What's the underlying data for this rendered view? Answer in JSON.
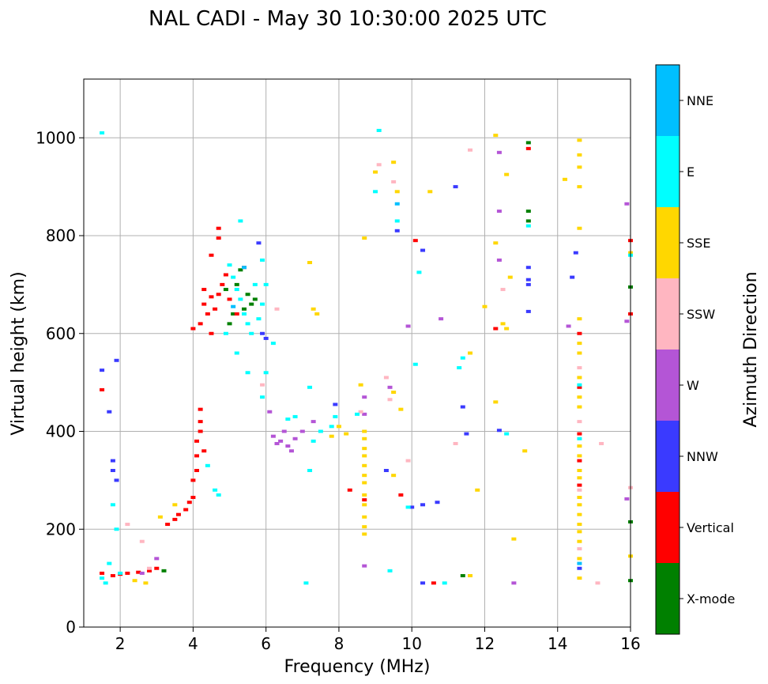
{
  "chart_data": {
    "type": "scatter",
    "title": "NAL CADI - May 30 10:30:00 2025 UTC",
    "xlabel": "Frequency (MHz)",
    "ylabel": "Virtual height (km)",
    "xlim": [
      1,
      16
    ],
    "ylim": [
      0,
      1120
    ],
    "xticks": [
      2,
      4,
      6,
      8,
      10,
      12,
      14,
      16
    ],
    "yticks": [
      0,
      200,
      400,
      600,
      800,
      1000
    ],
    "grid": true,
    "colorbar": {
      "label": "Azimuth Direction",
      "categories": [
        {
          "name": "X-mode",
          "color": "#008000"
        },
        {
          "name": "Vertical",
          "color": "#ff0000"
        },
        {
          "name": "NNW",
          "color": "#3a3aff"
        },
        {
          "name": "W",
          "color": "#b455d6"
        },
        {
          "name": "SSW",
          "color": "#ffb6c1"
        },
        {
          "name": "SSE",
          "color": "#ffd700"
        },
        {
          "name": "E",
          "color": "#00ffff"
        },
        {
          "name": "NNE",
          "color": "#00bfff"
        }
      ]
    },
    "series": [
      {
        "name": "X-mode",
        "points": [
          [
            3.2,
            115
          ],
          [
            5.3,
            730
          ],
          [
            5.5,
            680
          ],
          [
            5.2,
            700
          ],
          [
            5.6,
            660
          ],
          [
            5.4,
            650
          ],
          [
            13.2,
            990
          ],
          [
            13.2,
            830
          ],
          [
            13.2,
            850
          ],
          [
            16.0,
            695
          ],
          [
            16.0,
            215
          ],
          [
            16.0,
            95
          ],
          [
            5.1,
            640
          ],
          [
            4.9,
            690
          ],
          [
            11.4,
            105
          ],
          [
            5.7,
            670
          ],
          [
            5.0,
            620
          ]
        ]
      },
      {
        "name": "Vertical",
        "points": [
          [
            1.5,
            110
          ],
          [
            1.8,
            105
          ],
          [
            2.0,
            108
          ],
          [
            2.2,
            110
          ],
          [
            2.5,
            112
          ],
          [
            2.8,
            115
          ],
          [
            3.0,
            120
          ],
          [
            3.3,
            210
          ],
          [
            3.5,
            220
          ],
          [
            3.6,
            230
          ],
          [
            3.8,
            240
          ],
          [
            3.9,
            255
          ],
          [
            4.0,
            265
          ],
          [
            4.0,
            300
          ],
          [
            4.1,
            320
          ],
          [
            4.1,
            350
          ],
          [
            4.1,
            380
          ],
          [
            4.2,
            400
          ],
          [
            4.2,
            420
          ],
          [
            4.2,
            445
          ],
          [
            4.3,
            360
          ],
          [
            4.0,
            610
          ],
          [
            4.2,
            620
          ],
          [
            4.3,
            660
          ],
          [
            4.4,
            640
          ],
          [
            4.5,
            600
          ],
          [
            4.6,
            650
          ],
          [
            4.7,
            680
          ],
          [
            4.8,
            700
          ],
          [
            4.9,
            720
          ],
          [
            4.5,
            760
          ],
          [
            4.7,
            795
          ],
          [
            4.7,
            815
          ],
          [
            5.0,
            670
          ],
          [
            5.2,
            640
          ],
          [
            4.5,
            675
          ],
          [
            8.3,
            280
          ],
          [
            8.7,
            260
          ],
          [
            9.7,
            270
          ],
          [
            10.1,
            790
          ],
          [
            10.6,
            90
          ],
          [
            12.3,
            610
          ],
          [
            13.2,
            978
          ],
          [
            14.6,
            600
          ],
          [
            14.6,
            490
          ],
          [
            14.6,
            395
          ],
          [
            14.6,
            340
          ],
          [
            14.6,
            290
          ],
          [
            16.0,
            790
          ],
          [
            16.0,
            640
          ],
          [
            4.3,
            690
          ],
          [
            5.4,
            735
          ],
          [
            1.5,
            485
          ]
        ]
      },
      {
        "name": "NNW",
        "points": [
          [
            1.8,
            340
          ],
          [
            1.8,
            320
          ],
          [
            1.9,
            300
          ],
          [
            1.7,
            440
          ],
          [
            9.6,
            810
          ],
          [
            10.3,
            770
          ],
          [
            10.3,
            250
          ],
          [
            10.0,
            245
          ],
          [
            10.7,
            255
          ],
          [
            11.2,
            900
          ],
          [
            11.4,
            450
          ],
          [
            11.5,
            395
          ],
          [
            12.4,
            402
          ],
          [
            13.2,
            735
          ],
          [
            13.2,
            710
          ],
          [
            13.2,
            700
          ],
          [
            13.2,
            645
          ],
          [
            14.4,
            715
          ],
          [
            14.6,
            120
          ],
          [
            5.9,
            600
          ],
          [
            6.0,
            590
          ],
          [
            5.8,
            785
          ],
          [
            7.9,
            455
          ],
          [
            9.3,
            320
          ],
          [
            10.3,
            90
          ],
          [
            14.5,
            765
          ],
          [
            1.5,
            525
          ],
          [
            1.9,
            545
          ]
        ]
      },
      {
        "name": "W",
        "points": [
          [
            6.2,
            390
          ],
          [
            6.4,
            380
          ],
          [
            6.6,
            370
          ],
          [
            6.8,
            385
          ],
          [
            6.5,
            400
          ],
          [
            6.1,
            440
          ],
          [
            6.3,
            375
          ],
          [
            6.7,
            360
          ],
          [
            7.0,
            400
          ],
          [
            7.3,
            420
          ],
          [
            9.4,
            490
          ],
          [
            9.9,
            615
          ],
          [
            10.8,
            630
          ],
          [
            12.4,
            850
          ],
          [
            12.4,
            750
          ],
          [
            12.4,
            970
          ],
          [
            12.8,
            90
          ],
          [
            14.3,
            615
          ],
          [
            15.9,
            865
          ],
          [
            15.9,
            625
          ],
          [
            15.9,
            262
          ],
          [
            8.7,
            125
          ],
          [
            8.7,
            470
          ],
          [
            8.7,
            435
          ],
          [
            3.0,
            140
          ],
          [
            2.6,
            110
          ]
        ]
      },
      {
        "name": "SSW",
        "points": [
          [
            2.2,
            210
          ],
          [
            2.6,
            175
          ],
          [
            2.8,
            120
          ],
          [
            8.6,
            440
          ],
          [
            9.4,
            465
          ],
          [
            9.1,
            945
          ],
          [
            9.5,
            910
          ],
          [
            9.9,
            340
          ],
          [
            11.2,
            375
          ],
          [
            12.5,
            690
          ],
          [
            14.6,
            420
          ],
          [
            14.6,
            530
          ],
          [
            14.6,
            160
          ],
          [
            14.6,
            280
          ],
          [
            15.1,
            90
          ],
          [
            15.2,
            375
          ],
          [
            16.0,
            285
          ],
          [
            6.3,
            650
          ],
          [
            5.9,
            495
          ],
          [
            9.3,
            510
          ],
          [
            11.6,
            975
          ]
        ]
      },
      {
        "name": "SSE",
        "points": [
          [
            8.7,
            400
          ],
          [
            8.7,
            385
          ],
          [
            8.7,
            365
          ],
          [
            8.7,
            350
          ],
          [
            8.7,
            330
          ],
          [
            8.7,
            310
          ],
          [
            8.7,
            295
          ],
          [
            8.7,
            270
          ],
          [
            8.7,
            250
          ],
          [
            8.7,
            225
          ],
          [
            8.7,
            205
          ],
          [
            8.7,
            190
          ],
          [
            8.7,
            795
          ],
          [
            8.6,
            495
          ],
          [
            9.0,
            930
          ],
          [
            9.5,
            950
          ],
          [
            9.6,
            890
          ],
          [
            9.5,
            480
          ],
          [
            9.5,
            310
          ],
          [
            9.7,
            445
          ],
          [
            10.5,
            890
          ],
          [
            12.3,
            1005
          ],
          [
            12.3,
            785
          ],
          [
            12.3,
            460
          ],
          [
            12.6,
            925
          ],
          [
            12.7,
            715
          ],
          [
            12.6,
            610
          ],
          [
            12.8,
            180
          ],
          [
            13.1,
            360
          ],
          [
            14.6,
            995
          ],
          [
            14.6,
            965
          ],
          [
            14.6,
            940
          ],
          [
            14.6,
            900
          ],
          [
            14.6,
            815
          ],
          [
            14.6,
            630
          ],
          [
            14.6,
            580
          ],
          [
            14.6,
            560
          ],
          [
            14.6,
            510
          ],
          [
            14.6,
            470
          ],
          [
            14.6,
            450
          ],
          [
            14.6,
            370
          ],
          [
            14.6,
            350
          ],
          [
            14.6,
            320
          ],
          [
            14.6,
            305
          ],
          [
            14.6,
            265
          ],
          [
            14.6,
            250
          ],
          [
            14.6,
            230
          ],
          [
            14.6,
            210
          ],
          [
            14.6,
            195
          ],
          [
            14.6,
            175
          ],
          [
            14.6,
            140
          ],
          [
            14.2,
            915
          ],
          [
            14.6,
            100
          ],
          [
            16.0,
            765
          ],
          [
            16.0,
            145
          ],
          [
            7.4,
            640
          ],
          [
            7.3,
            650
          ],
          [
            7.2,
            745
          ],
          [
            7.8,
            390
          ],
          [
            8.0,
            410
          ],
          [
            8.2,
            395
          ],
          [
            2.7,
            90
          ],
          [
            2.4,
            95
          ],
          [
            3.5,
            250
          ],
          [
            3.1,
            225
          ],
          [
            11.6,
            105
          ],
          [
            11.8,
            280
          ],
          [
            12.0,
            655
          ],
          [
            12.5,
            620
          ],
          [
            11.6,
            560
          ]
        ]
      },
      {
        "name": "E",
        "points": [
          [
            1.5,
            100
          ],
          [
            1.6,
            90
          ],
          [
            1.7,
            130
          ],
          [
            1.8,
            250
          ],
          [
            1.9,
            200
          ],
          [
            2.0,
            110
          ],
          [
            4.4,
            330
          ],
          [
            4.6,
            280
          ],
          [
            4.7,
            270
          ],
          [
            5.0,
            740
          ],
          [
            5.1,
            715
          ],
          [
            5.2,
            690
          ],
          [
            5.3,
            670
          ],
          [
            5.4,
            640
          ],
          [
            5.5,
            620
          ],
          [
            5.6,
            600
          ],
          [
            5.8,
            630
          ],
          [
            5.9,
            660
          ],
          [
            6.0,
            700
          ],
          [
            6.2,
            580
          ],
          [
            6.0,
            520
          ],
          [
            5.9,
            470
          ],
          [
            5.5,
            520
          ],
          [
            5.2,
            560
          ],
          [
            4.9,
            600
          ],
          [
            5.7,
            700
          ],
          [
            5.9,
            750
          ],
          [
            5.3,
            830
          ],
          [
            7.2,
            320
          ],
          [
            7.3,
            380
          ],
          [
            7.5,
            400
          ],
          [
            7.8,
            410
          ],
          [
            7.9,
            430
          ],
          [
            7.2,
            490
          ],
          [
            7.1,
            90
          ],
          [
            8.5,
            435
          ],
          [
            9.1,
            1015
          ],
          [
            9.0,
            890
          ],
          [
            9.4,
            115
          ],
          [
            9.6,
            830
          ],
          [
            9.9,
            245
          ],
          [
            10.2,
            725
          ],
          [
            10.1,
            537
          ],
          [
            10.9,
            90
          ],
          [
            11.3,
            530
          ],
          [
            11.4,
            550
          ],
          [
            12.6,
            395
          ],
          [
            13.2,
            820
          ],
          [
            14.6,
            495
          ],
          [
            14.6,
            385
          ],
          [
            16.0,
            760
          ],
          [
            1.5,
            1010
          ],
          [
            6.8,
            430
          ],
          [
            6.6,
            425
          ]
        ]
      },
      {
        "name": "NNE",
        "points": [
          [
            9.6,
            865
          ],
          [
            14.6,
            130
          ],
          [
            5.4,
            735
          ],
          [
            5.1,
            655
          ]
        ]
      }
    ]
  }
}
